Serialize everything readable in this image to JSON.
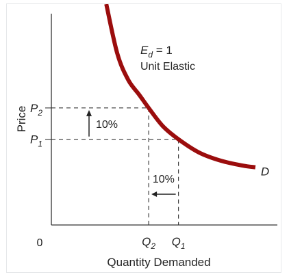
{
  "chart_data": {
    "type": "line",
    "title": "",
    "xlabel": "Quantity Demanded",
    "ylabel": "Price",
    "origin_label": "0",
    "curve_label": "D",
    "elasticity": {
      "symbol": "E",
      "subscript": "d",
      "value": " = 1",
      "description": "Unit Elastic"
    },
    "x_ticks": [
      {
        "main": "Q",
        "sub": "2",
        "value": 3.1
      },
      {
        "main": "Q",
        "sub": "1",
        "value": 4.05
      }
    ],
    "y_ticks": [
      {
        "main": "P",
        "sub": "2",
        "value": 3.55
      },
      {
        "main": "P",
        "sub": "1",
        "value": 2.6
      }
    ],
    "price_change_label": "10%",
    "quantity_change_label": "10%",
    "series": [
      {
        "color": "#9b0d0d",
        "points": [
          [
            1.75,
            6.7
          ],
          [
            2.1,
            5.2
          ],
          [
            2.45,
            4.4
          ],
          [
            2.8,
            3.95
          ],
          [
            3.1,
            3.55
          ],
          [
            3.55,
            3.0
          ],
          [
            4.05,
            2.6
          ],
          [
            4.7,
            2.2
          ],
          [
            5.4,
            1.95
          ],
          [
            6.1,
            1.8
          ],
          [
            6.5,
            1.75
          ]
        ]
      }
    ],
    "xlim": [
      0,
      7.2
    ],
    "ylim": [
      0,
      6.7
    ],
    "grid": false,
    "guide_lines": "dashed"
  }
}
